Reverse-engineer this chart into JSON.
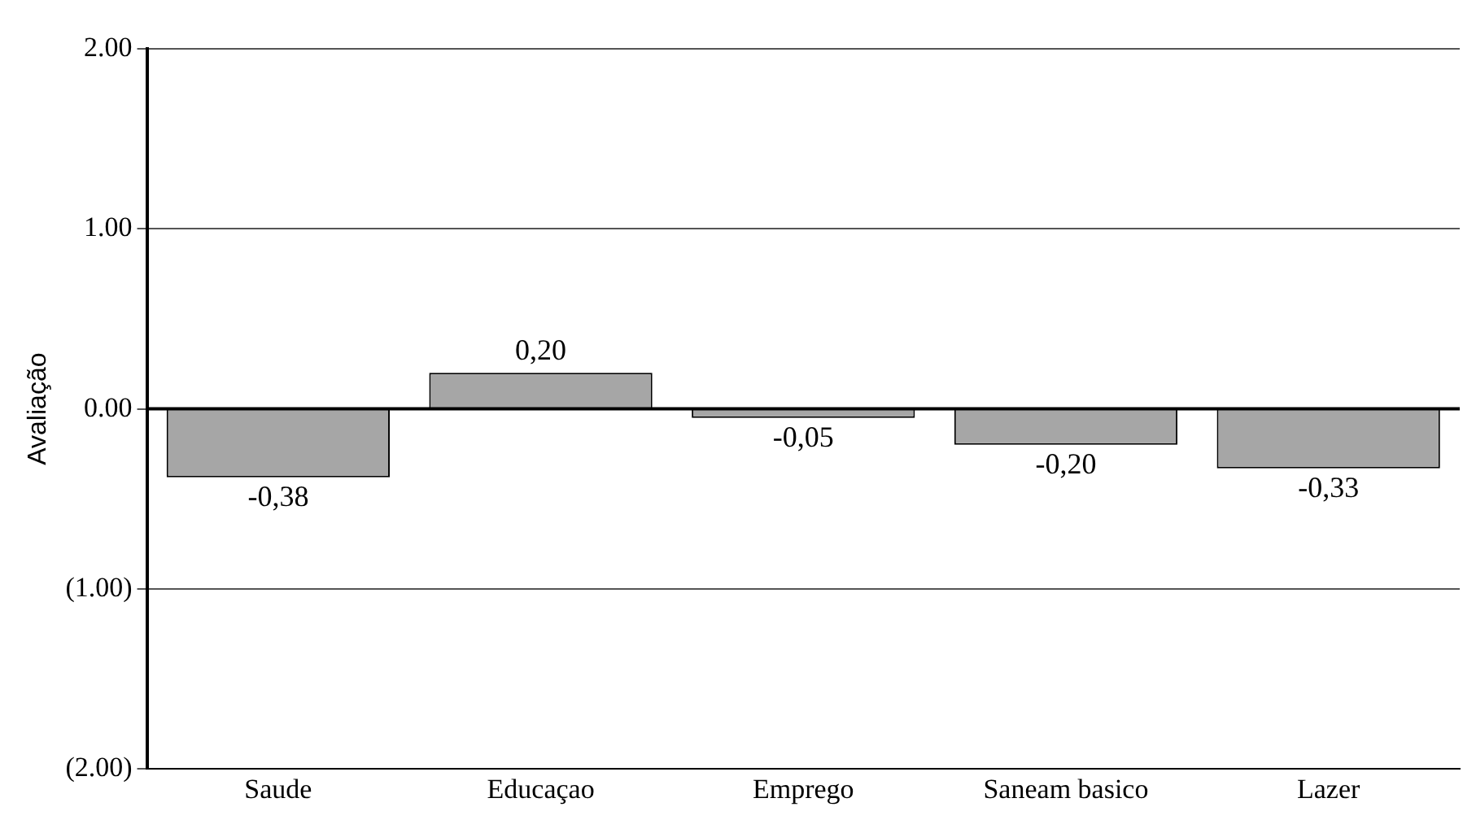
{
  "chart_data": {
    "type": "bar",
    "ylabel": "Avaliação",
    "categories": [
      "Saude",
      "Educaçao",
      "Emprego",
      "Saneam basico",
      "Lazer"
    ],
    "values": [
      -0.38,
      0.2,
      -0.05,
      -0.2,
      -0.33
    ],
    "value_labels": [
      "-0,38",
      "0,20",
      "-0,05",
      "-0,20",
      "-0,33"
    ],
    "color": "#a6a6a6",
    "ylim": [
      -2,
      2
    ],
    "yticks": [
      {
        "value": -2,
        "label": "(2.00)"
      },
      {
        "value": -1,
        "label": "(1.00)"
      },
      {
        "value": 0,
        "label": "0.00"
      },
      {
        "value": 1,
        "label": "1.00"
      },
      {
        "value": 2,
        "label": "2.00"
      }
    ],
    "grid": "y",
    "legend": false
  }
}
